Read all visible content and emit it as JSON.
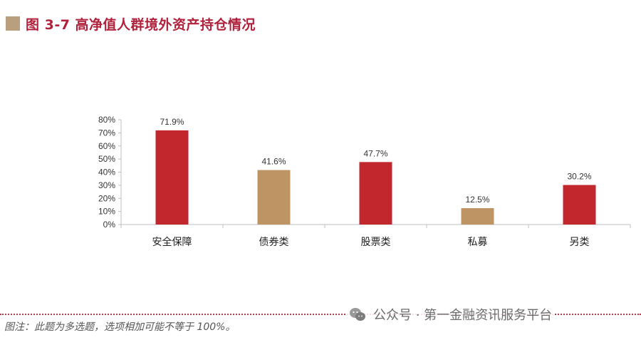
{
  "title": "图 3-7  高净值人群境外资产持仓情况",
  "colors": {
    "title": "#b0213c",
    "marker": "#b8a07e",
    "red_bar": "#c1272d",
    "tan_bar": "#bf9465",
    "axis": "#bfbfbf",
    "dotted_line": "#b93a4e"
  },
  "chart_data": {
    "type": "bar",
    "categories": [
      "安全保障",
      "债券类",
      "股票类",
      "私募",
      "另类"
    ],
    "values": [
      71.9,
      41.6,
      47.7,
      12.5,
      30.2
    ],
    "data_labels": [
      "71.9%",
      "41.6%",
      "47.7%",
      "12.5%",
      "30.2%"
    ],
    "bar_colors": [
      "#c1272d",
      "#bf9465",
      "#c1272d",
      "#bf9465",
      "#c1272d"
    ],
    "ylim": [
      0,
      80
    ],
    "yticks": [
      0,
      10,
      20,
      30,
      40,
      50,
      60,
      70,
      80
    ],
    "ytick_labels": [
      "0%",
      "10%",
      "20%",
      "30%",
      "40%",
      "50%",
      "60%",
      "70%",
      "80%"
    ],
    "grid": false,
    "legend": "none"
  },
  "note": "图注：此题为多选题，选项相加可能不等于 100%。",
  "watermark": {
    "icon": "wechat-icon",
    "text": "公众号 · 第一金融资讯服务平台"
  }
}
